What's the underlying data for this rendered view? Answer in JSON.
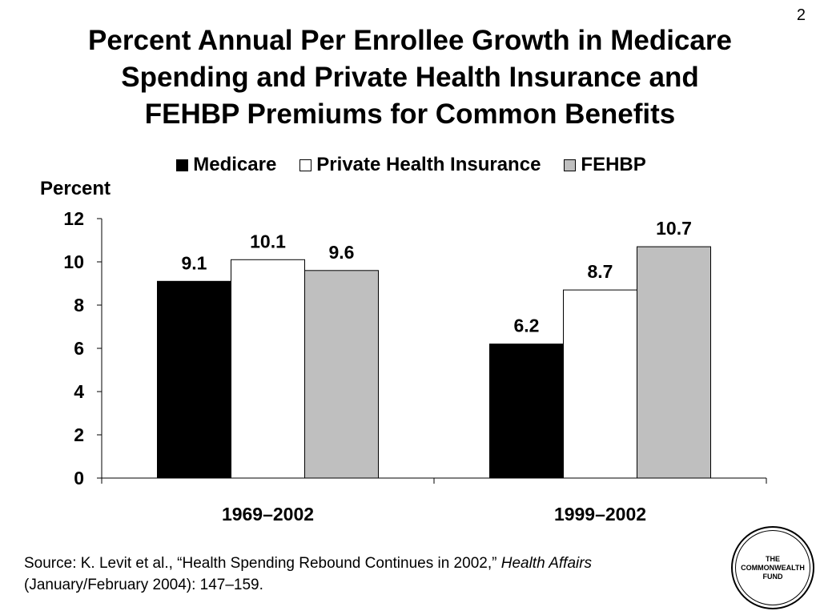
{
  "slide_number": "2",
  "title_lines": [
    "Percent Annual Per Enrollee Growth in Medicare",
    "Spending and Private Health Insurance and",
    "FEHBP Premiums for Common Benefits"
  ],
  "colors": {
    "medicare": "#000000",
    "private": "#ffffff",
    "fehbp": "#bfbfbf"
  },
  "chart_data": {
    "type": "bar",
    "title": "Percent Annual Per Enrollee Growth in Medicare Spending and Private Health Insurance and FEHBP Premiums for Common Benefits",
    "ylabel": "Percent",
    "xlabel": "",
    "categories": [
      "1969–2002",
      "1999–2002"
    ],
    "series": [
      {
        "name": "Medicare",
        "values": [
          9.1,
          6.2
        ],
        "labels": [
          "9.1",
          "6.2"
        ],
        "color": "#000000"
      },
      {
        "name": "Private Health Insurance",
        "values": [
          10.1,
          8.7
        ],
        "labels": [
          "10.1",
          "8.7"
        ],
        "color": "#ffffff"
      },
      {
        "name": "FEHBP",
        "values": [
          9.6,
          10.7
        ],
        "labels": [
          "9.6",
          "10.7"
        ],
        "color": "#bfbfbf"
      }
    ],
    "ylim": [
      0,
      12
    ],
    "yticks": [
      "0",
      "2",
      "4",
      "6",
      "8",
      "10",
      "12"
    ],
    "legend": "top",
    "grid": false
  },
  "source": {
    "line1_prefix": "Source: K. Levit et al., “Health Spending Rebound Continues in 2002,” ",
    "line1_italic": "Health Affairs",
    "line2": "(January/February 2004): 147–159."
  },
  "logo": {
    "line1": "THE",
    "line2": "COMMONWEALTH",
    "line3": "FUND"
  }
}
